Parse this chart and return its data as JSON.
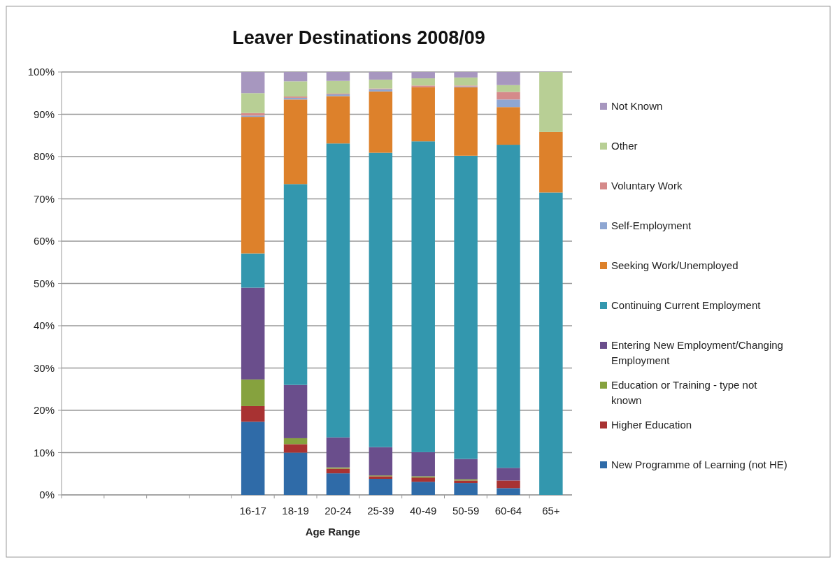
{
  "chart_data": {
    "type": "bar",
    "stacked": true,
    "title": "Leaver Destinations 2008/09",
    "xlabel": "Age Range",
    "categories": [
      null,
      null,
      null,
      null,
      "16-17",
      "18-19",
      "20-24",
      "25-39",
      "40-49",
      "50-59",
      "60-64",
      "65+"
    ],
    "ylim": [
      0,
      100
    ],
    "yticks": [
      {
        "value": 0,
        "label": "0%"
      },
      {
        "value": 10,
        "label": "10%"
      },
      {
        "value": 20,
        "label": "20%"
      },
      {
        "value": 30,
        "label": "30%"
      },
      {
        "value": 40,
        "label": "40%"
      },
      {
        "value": 50,
        "label": "50%"
      },
      {
        "value": 60,
        "label": "60%"
      },
      {
        "value": 70,
        "label": "70%"
      },
      {
        "value": 80,
        "label": "80%"
      },
      {
        "value": 90,
        "label": "90%"
      },
      {
        "value": 100,
        "label": "100%"
      }
    ],
    "grid": "y",
    "legend": "right",
    "series": [
      {
        "name": "New Programme of Learning (not HE)",
        "color": "#2f6ba8",
        "values": [
          null,
          null,
          null,
          null,
          17.3,
          10.0,
          5.1,
          3.8,
          3.1,
          2.8,
          1.6,
          0
        ]
      },
      {
        "name": "Higher Education",
        "color": "#a83232",
        "values": [
          null,
          null,
          null,
          null,
          3.7,
          2.0,
          1.1,
          0.6,
          1.0,
          0.6,
          1.8,
          0
        ]
      },
      {
        "name": "Education or Training - type not known",
        "color": "#86a23e",
        "values": [
          null,
          null,
          null,
          null,
          6.3,
          1.4,
          0.3,
          0.2,
          0.3,
          0.3,
          0,
          0
        ]
      },
      {
        "name": "Entering New Employment/Changing Employment",
        "color": "#6a4e8c",
        "values": [
          null,
          null,
          null,
          null,
          21.7,
          12.6,
          7.1,
          6.7,
          5.7,
          4.8,
          3.0,
          0
        ]
      },
      {
        "name": "Continuing Current Employment",
        "color": "#3397ae",
        "values": [
          null,
          null,
          null,
          null,
          8.1,
          47.5,
          69.5,
          69.6,
          73.5,
          71.7,
          76.4,
          71.5
        ]
      },
      {
        "name": "Seeking Work/Unemployed",
        "color": "#dd812b",
        "values": [
          null,
          null,
          null,
          null,
          32.3,
          20.0,
          11.2,
          14.5,
          12.8,
          16.2,
          8.9,
          14.3
        ]
      },
      {
        "name": "Self-Employment",
        "color": "#8ea6d2",
        "values": [
          null,
          null,
          null,
          null,
          0.3,
          0.4,
          0.4,
          0.5,
          0,
          0.2,
          1.8,
          0
        ]
      },
      {
        "name": "Voluntary Work",
        "color": "#d58a8a",
        "values": [
          null,
          null,
          null,
          null,
          0.6,
          0.3,
          0.2,
          0.2,
          0.4,
          0.2,
          1.8,
          0
        ]
      },
      {
        "name": "Other",
        "color": "#b8cf95",
        "values": [
          null,
          null,
          null,
          null,
          4.7,
          3.6,
          3.0,
          2.1,
          1.7,
          1.9,
          1.6,
          14.2
        ]
      },
      {
        "name": "Not Known",
        "color": "#a797bf",
        "values": [
          null,
          null,
          null,
          null,
          5.0,
          2.2,
          2.1,
          1.8,
          1.5,
          1.3,
          3.1,
          0
        ]
      }
    ]
  }
}
